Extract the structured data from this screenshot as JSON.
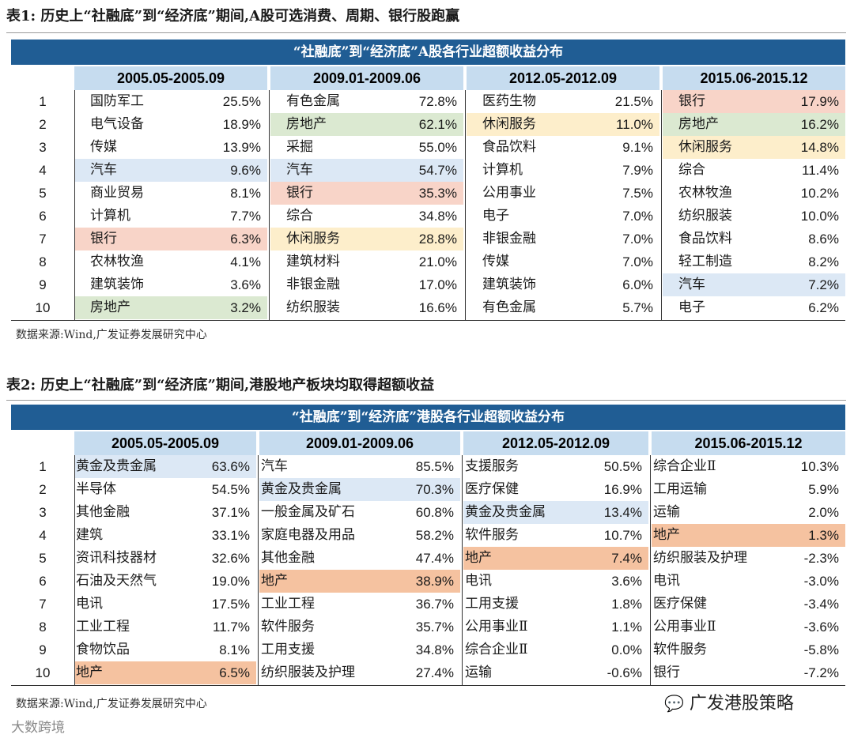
{
  "table1": {
    "title": "表1: 历史上“社融底”到“经济底”期间,A股可选消费、周期、银行股跑赢",
    "banner": "“社融底”到“经济底”A股各行业超额收益分布",
    "periods": [
      "2005.05-2005.09",
      "2009.01-2009.06",
      "2012.05-2012.09",
      "2015.06-2015.12"
    ],
    "ranks": [
      "1",
      "2",
      "3",
      "4",
      "5",
      "6",
      "7",
      "8",
      "9",
      "10"
    ],
    "source": "数据来源:Wind,广发证券发展研究中心",
    "columns": [
      [
        {
          "name": "国防军工",
          "value": "25.5%",
          "hl": ""
        },
        {
          "name": "电气设备",
          "value": "18.9%",
          "hl": ""
        },
        {
          "name": "传媒",
          "value": "13.9%",
          "hl": ""
        },
        {
          "name": "汽车",
          "value": "9.6%",
          "hl": "blue"
        },
        {
          "name": "商业贸易",
          "value": "8.1%",
          "hl": ""
        },
        {
          "name": "计算机",
          "value": "7.7%",
          "hl": ""
        },
        {
          "name": "银行",
          "value": "6.3%",
          "hl": "pink"
        },
        {
          "name": "农林牧渔",
          "value": "4.1%",
          "hl": ""
        },
        {
          "name": "建筑装饰",
          "value": "3.6%",
          "hl": ""
        },
        {
          "name": "房地产",
          "value": "3.2%",
          "hl": "green"
        }
      ],
      [
        {
          "name": "有色金属",
          "value": "72.8%",
          "hl": ""
        },
        {
          "name": "房地产",
          "value": "62.1%",
          "hl": "green"
        },
        {
          "name": "采掘",
          "value": "55.0%",
          "hl": ""
        },
        {
          "name": "汽车",
          "value": "54.7%",
          "hl": "blue"
        },
        {
          "name": "银行",
          "value": "35.3%",
          "hl": "pink"
        },
        {
          "name": "综合",
          "value": "34.8%",
          "hl": ""
        },
        {
          "name": "休闲服务",
          "value": "28.8%",
          "hl": "yellow"
        },
        {
          "name": "建筑材料",
          "value": "21.0%",
          "hl": ""
        },
        {
          "name": "非银金融",
          "value": "17.0%",
          "hl": ""
        },
        {
          "name": "纺织服装",
          "value": "16.6%",
          "hl": ""
        }
      ],
      [
        {
          "name": "医药生物",
          "value": "21.5%",
          "hl": ""
        },
        {
          "name": "休闲服务",
          "value": "11.0%",
          "hl": "yellow"
        },
        {
          "name": "食品饮料",
          "value": "9.1%",
          "hl": ""
        },
        {
          "name": "计算机",
          "value": "7.9%",
          "hl": ""
        },
        {
          "name": "公用事业",
          "value": "7.5%",
          "hl": ""
        },
        {
          "name": "电子",
          "value": "7.0%",
          "hl": ""
        },
        {
          "name": "非银金融",
          "value": "7.0%",
          "hl": ""
        },
        {
          "name": "传媒",
          "value": "7.0%",
          "hl": ""
        },
        {
          "name": "建筑装饰",
          "value": "6.0%",
          "hl": ""
        },
        {
          "name": "有色金属",
          "value": "5.7%",
          "hl": ""
        }
      ],
      [
        {
          "name": "银行",
          "value": "17.9%",
          "hl": "pink"
        },
        {
          "name": "房地产",
          "value": "16.2%",
          "hl": "green"
        },
        {
          "name": "休闲服务",
          "value": "14.8%",
          "hl": "yellow"
        },
        {
          "name": "综合",
          "value": "11.4%",
          "hl": ""
        },
        {
          "name": "农林牧渔",
          "value": "10.2%",
          "hl": ""
        },
        {
          "name": "纺织服装",
          "value": "10.0%",
          "hl": ""
        },
        {
          "name": "食品饮料",
          "value": "8.6%",
          "hl": ""
        },
        {
          "name": "轻工制造",
          "value": "8.2%",
          "hl": ""
        },
        {
          "name": "汽车",
          "value": "7.2%",
          "hl": "blue"
        },
        {
          "name": "电子",
          "value": "6.2%",
          "hl": ""
        }
      ]
    ]
  },
  "table2": {
    "title": "表2: 历史上“社融底”到“经济底”期间,港股地产板块均取得超额收益",
    "banner": "“社融底”到“经济底”港股各行业超额收益分布",
    "periods": [
      "2005.05-2005.09",
      "2009.01-2009.06",
      "2012.05-2012.09",
      "2015.06-2015.12"
    ],
    "ranks": [
      "1",
      "2",
      "3",
      "4",
      "5",
      "6",
      "7",
      "8",
      "9",
      "10"
    ],
    "source": "数据来源:Wind,广发证券发展研究中心",
    "columns": [
      [
        {
          "name": "黄金及贵金属",
          "value": "63.6%",
          "hl": "blue"
        },
        {
          "name": "半导体",
          "value": "54.5%",
          "hl": ""
        },
        {
          "name": "其他金融",
          "value": "37.1%",
          "hl": ""
        },
        {
          "name": "建筑",
          "value": "33.1%",
          "hl": ""
        },
        {
          "name": "资讯科技器材",
          "value": "32.6%",
          "hl": ""
        },
        {
          "name": "石油及天然气",
          "value": "19.0%",
          "hl": ""
        },
        {
          "name": "电讯",
          "value": "17.5%",
          "hl": ""
        },
        {
          "name": "工业工程",
          "value": "11.7%",
          "hl": ""
        },
        {
          "name": "食物饮品",
          "value": "8.1%",
          "hl": ""
        },
        {
          "name": "地产",
          "value": "6.5%",
          "hl": "orange"
        }
      ],
      [
        {
          "name": "汽车",
          "value": "85.5%",
          "hl": ""
        },
        {
          "name": "黄金及贵金属",
          "value": "70.3%",
          "hl": "blue"
        },
        {
          "name": "一般金属及矿石",
          "value": "60.8%",
          "hl": ""
        },
        {
          "name": "家庭电器及用品",
          "value": "58.2%",
          "hl": ""
        },
        {
          "name": "其他金融",
          "value": "47.4%",
          "hl": ""
        },
        {
          "name": "地产",
          "value": "38.9%",
          "hl": "orange"
        },
        {
          "name": "工业工程",
          "value": "36.7%",
          "hl": ""
        },
        {
          "name": "软件服务",
          "value": "35.7%",
          "hl": ""
        },
        {
          "name": "工用支援",
          "value": "34.8%",
          "hl": ""
        },
        {
          "name": "纺织服装及护理",
          "value": "27.4%",
          "hl": ""
        }
      ],
      [
        {
          "name": "支援服务",
          "value": "50.5%",
          "hl": ""
        },
        {
          "name": "医疗保健",
          "value": "16.9%",
          "hl": ""
        },
        {
          "name": "黄金及贵金属",
          "value": "13.4%",
          "hl": "blue"
        },
        {
          "name": "软件服务",
          "value": "10.7%",
          "hl": ""
        },
        {
          "name": "地产",
          "value": "7.4%",
          "hl": "orange"
        },
        {
          "name": "电讯",
          "value": "3.6%",
          "hl": ""
        },
        {
          "name": "工用支援",
          "value": "1.8%",
          "hl": ""
        },
        {
          "name": "公用事业Ⅱ",
          "value": "1.1%",
          "hl": ""
        },
        {
          "name": "综合企业Ⅱ",
          "value": "0.0%",
          "hl": ""
        },
        {
          "name": "运输",
          "value": "-0.6%",
          "hl": ""
        }
      ],
      [
        {
          "name": "综合企业Ⅱ",
          "value": "10.3%",
          "hl": ""
        },
        {
          "name": "工用运输",
          "value": "5.9%",
          "hl": ""
        },
        {
          "name": "运输",
          "value": "2.0%",
          "hl": ""
        },
        {
          "name": "地产",
          "value": "1.3%",
          "hl": "orange"
        },
        {
          "name": "纺织服装及护理",
          "value": "-2.3%",
          "hl": ""
        },
        {
          "name": "电讯",
          "value": "-3.0%",
          "hl": ""
        },
        {
          "name": "医疗保健",
          "value": "-3.4%",
          "hl": ""
        },
        {
          "name": "公用事业Ⅱ",
          "value": "-3.6%",
          "hl": ""
        },
        {
          "name": "软件服务",
          "value": "-5.8%",
          "hl": ""
        },
        {
          "name": "银行",
          "value": "-7.2%",
          "hl": ""
        }
      ]
    ]
  },
  "brand": "广发港股策略",
  "watermark": "大数跨境",
  "colors": {
    "banner": "#205d94",
    "header": "#c6dcef",
    "blue": "#dce8f5",
    "green": "#dbe9d1",
    "pink": "#f8d4c8",
    "yellow": "#fdeecb",
    "orange": "#f5c2a0"
  }
}
